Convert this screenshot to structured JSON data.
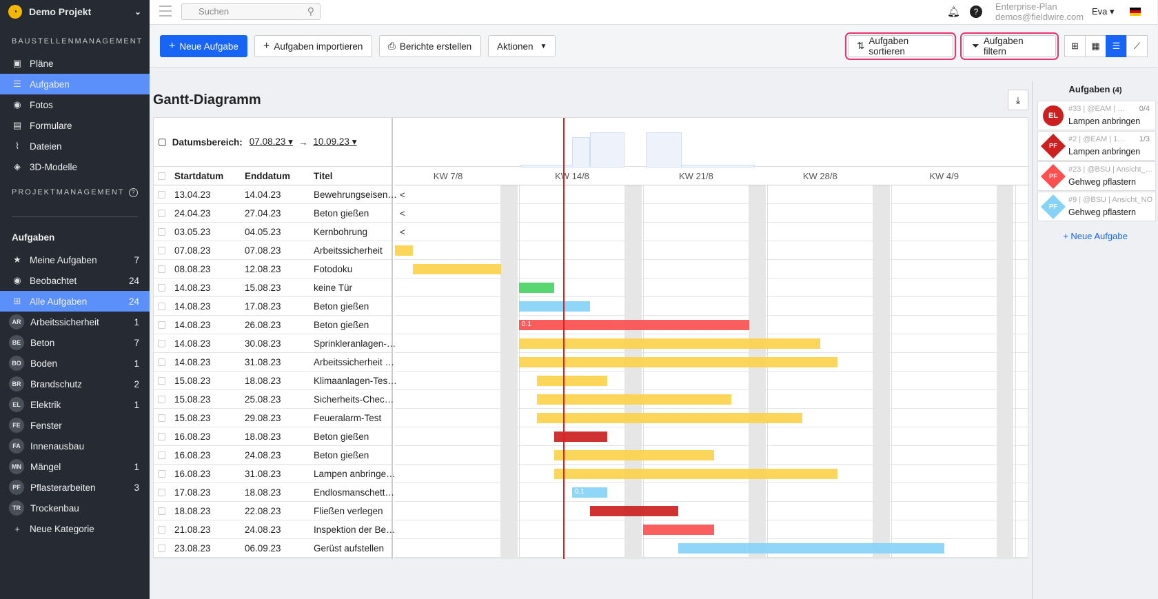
{
  "sidebar": {
    "project": "Demo Projekt",
    "section1": "BAUSTELLENMANAGEMENT",
    "nav": [
      {
        "label": "Pläne",
        "icon": "plans-icon"
      },
      {
        "label": "Aufgaben",
        "icon": "list-icon"
      },
      {
        "label": "Fotos",
        "icon": "camera-icon"
      },
      {
        "label": "Formulare",
        "icon": "clipboard-icon"
      },
      {
        "label": "Dateien",
        "icon": "paperclip-icon"
      },
      {
        "label": "3D-Modelle",
        "icon": "cube-icon"
      }
    ],
    "section2": "PROJEKTMANAGEMENT",
    "tasks_heading": "Aufgaben",
    "task_items": [
      {
        "label": "Meine Aufgaben",
        "count": "7"
      },
      {
        "label": "Beobachtet",
        "count": "24"
      },
      {
        "label": "Alle Aufgaben",
        "count": "24"
      }
    ],
    "categories": [
      {
        "abbr": "AR",
        "label": "Arbeitssicherheit",
        "count": "1"
      },
      {
        "abbr": "BE",
        "label": "Beton",
        "count": "7"
      },
      {
        "abbr": "BO",
        "label": "Boden",
        "count": "1"
      },
      {
        "abbr": "BR",
        "label": "Brandschutz",
        "count": "2"
      },
      {
        "abbr": "EL",
        "label": "Elektrik",
        "count": "1"
      },
      {
        "abbr": "FE",
        "label": "Fenster",
        "count": ""
      },
      {
        "abbr": "FA",
        "label": "Innenausbau",
        "count": ""
      },
      {
        "abbr": "MN",
        "label": "Mängel",
        "count": "1"
      },
      {
        "abbr": "PF",
        "label": "Pflasterarbeiten",
        "count": "3"
      },
      {
        "abbr": "TR",
        "label": "Trockenbau",
        "count": ""
      }
    ],
    "new_category": "Neue Kategorie"
  },
  "topbar": {
    "search_placeholder": "Suchen",
    "plan": "Enterprise-Plan",
    "email": "demos@fieldwire.com",
    "user": "Eva"
  },
  "toolbar": {
    "new_task": "Neue Aufgabe",
    "import": "Aufgaben importieren",
    "reports": "Berichte erstellen",
    "actions": "Aktionen",
    "sort": "Aufgaben sortieren",
    "filter": "Aufgaben filtern"
  },
  "gantt": {
    "title": "Gantt-Diagramm",
    "date_range_label": "Datumsbereich:",
    "date_from": "07.08.23",
    "date_to": "10.09.23",
    "col_start": "Startdatum",
    "col_end": "Enddatum",
    "col_title": "Titel",
    "weeks": [
      "KW 7/8",
      "KW 14/8",
      "KW 21/8",
      "KW 28/8",
      "KW 4/9"
    ],
    "rows": [
      {
        "start": "13.04.23",
        "end": "14.04.23",
        "title": "Bewehrungseisen…",
        "off": "<"
      },
      {
        "start": "24.04.23",
        "end": "27.04.23",
        "title": "Beton gießen",
        "off": "<"
      },
      {
        "start": "03.05.23",
        "end": "04.05.23",
        "title": "Kernbohrung",
        "off": "<"
      },
      {
        "start": "07.08.23",
        "end": "07.08.23",
        "title": "Arbeitssicherheit",
        "b": 0,
        "e": 1,
        "c": "#fcd34d"
      },
      {
        "start": "08.08.23",
        "end": "12.08.23",
        "title": "Fotodoku",
        "b": 1,
        "e": 6,
        "c": "#fcd34d"
      },
      {
        "start": "14.08.23",
        "end": "15.08.23",
        "title": "keine Tür",
        "b": 7,
        "e": 9,
        "c": "#4ad366"
      },
      {
        "start": "14.08.23",
        "end": "17.08.23",
        "title": "Beton gießen",
        "b": 7,
        "e": 11,
        "c": "#87d3f7"
      },
      {
        "start": "14.08.23",
        "end": "26.08.23",
        "title": "Beton gießen",
        "b": 7,
        "e": 20,
        "c": "#fb5050",
        "tag": "0.1"
      },
      {
        "start": "14.08.23",
        "end": "30.08.23",
        "title": "Sprinkleranlagen-…",
        "b": 7,
        "e": 24,
        "c": "#fcd34d"
      },
      {
        "start": "14.08.23",
        "end": "31.08.23",
        "title": "Arbeitssicherheit …",
        "b": 7,
        "e": 25,
        "c": "#fcd34d"
      },
      {
        "start": "15.08.23",
        "end": "18.08.23",
        "title": "Klimaanlagen-Tes…",
        "b": 8,
        "e": 12,
        "c": "#fcd34d"
      },
      {
        "start": "15.08.23",
        "end": "25.08.23",
        "title": "Sicherheits-Chec…",
        "b": 8,
        "e": 19,
        "c": "#fcd34d"
      },
      {
        "start": "15.08.23",
        "end": "29.08.23",
        "title": "Feueralarm-Test",
        "b": 8,
        "e": 23,
        "c": "#fcd34d"
      },
      {
        "start": "16.08.23",
        "end": "18.08.23",
        "title": "Beton gießen",
        "b": 9,
        "e": 12,
        "c": "#cc1f1f"
      },
      {
        "start": "16.08.23",
        "end": "24.08.23",
        "title": "Beton gießen",
        "b": 9,
        "e": 18,
        "c": "#fcd34d"
      },
      {
        "start": "16.08.23",
        "end": "31.08.23",
        "title": "Lampen anbringe…",
        "b": 9,
        "e": 25,
        "c": "#fcd34d"
      },
      {
        "start": "17.08.23",
        "end": "18.08.23",
        "title": "Endlosmanschett…",
        "b": 10,
        "e": 12,
        "c": "#87d3f7",
        "tag": "0.1"
      },
      {
        "start": "18.08.23",
        "end": "22.08.23",
        "title": "Fließen verlegen",
        "b": 11,
        "e": 16,
        "c": "#cc1f1f"
      },
      {
        "start": "21.08.23",
        "end": "24.08.23",
        "title": "Inspektion der Be…",
        "b": 14,
        "e": 18,
        "c": "#fb5050"
      },
      {
        "start": "23.08.23",
        "end": "06.09.23",
        "title": "Gerüst aufstellen",
        "b": 16,
        "e": 31,
        "c": "#87d3f7"
      }
    ]
  },
  "right_panel": {
    "title": "Aufgaben",
    "count": "(4)",
    "cards": [
      {
        "abbr": "EL",
        "meta": "#33 | @EAM | …",
        "prog": "0/4",
        "title": "Lampen anbringen",
        "color": "#cc1f1f"
      },
      {
        "abbr": "PF",
        "meta": "#2 | @EAM | 1…",
        "prog": "1/3",
        "title": "Lampen anbringen",
        "color": "#cc1f1f"
      },
      {
        "abbr": "PF",
        "meta": "#23 | @BSU | Ansicht_…",
        "prog": "",
        "title": "Gehweg pflastern",
        "color": "#fb5050"
      },
      {
        "abbr": "PF",
        "meta": "#9 | @BSU | Ansicht_NO",
        "prog": "",
        "title": "Gehweg pflastern",
        "color": "#87d3f7"
      }
    ],
    "new_task": "+ Neue Aufgabe"
  }
}
